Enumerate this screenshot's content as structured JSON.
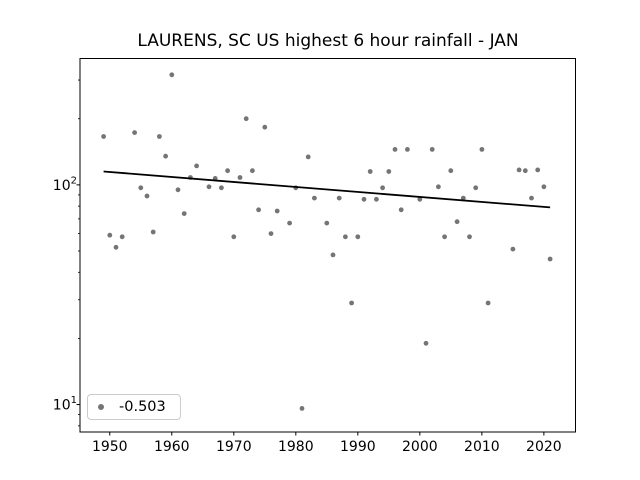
{
  "chart_data": {
    "type": "scatter",
    "title": "LAURENS, SC US highest 6 hour rainfall - JAN",
    "xlabel": "",
    "ylabel": "",
    "x_scale": "linear",
    "y_scale": "log",
    "xlim": [
      1945.2,
      2025.1
    ],
    "ylim": [
      7.5,
      376
    ],
    "x_ticks": [
      1950,
      1960,
      1970,
      1980,
      1990,
      2000,
      2010,
      2020
    ],
    "y_ticks": [
      {
        "value": 10,
        "mantissa": "10",
        "exponent": "1"
      },
      {
        "value": 100,
        "mantissa": "10",
        "exponent": "2"
      }
    ],
    "y_minor_ticks": [
      8,
      9,
      20,
      30,
      40,
      50,
      60,
      70,
      80,
      90,
      200,
      300
    ],
    "grid": false,
    "points": [
      [
        1949,
        166
      ],
      [
        1950,
        59
      ],
      [
        1951,
        52
      ],
      [
        1952,
        58
      ],
      [
        1954,
        173
      ],
      [
        1955,
        97
      ],
      [
        1956,
        89
      ],
      [
        1957,
        61
      ],
      [
        1958,
        166
      ],
      [
        1959,
        135
      ],
      [
        1960,
        317
      ],
      [
        1961,
        95
      ],
      [
        1962,
        74
      ],
      [
        1963,
        108
      ],
      [
        1964,
        122
      ],
      [
        1966,
        98
      ],
      [
        1967,
        107
      ],
      [
        1968,
        97
      ],
      [
        1969,
        116
      ],
      [
        1970,
        58
      ],
      [
        1971,
        108
      ],
      [
        1972,
        200
      ],
      [
        1973,
        116
      ],
      [
        1974,
        77
      ],
      [
        1975,
        183
      ],
      [
        1976,
        60
      ],
      [
        1977,
        76
      ],
      [
        1979,
        67
      ],
      [
        1980,
        97
      ],
      [
        1981,
        9.6
      ],
      [
        1982,
        134
      ],
      [
        1983,
        87
      ],
      [
        1985,
        67
      ],
      [
        1986,
        48
      ],
      [
        1987,
        87
      ],
      [
        1988,
        58
      ],
      [
        1989,
        29
      ],
      [
        1990,
        58
      ],
      [
        1991,
        86
      ],
      [
        1992,
        115
      ],
      [
        1993,
        86
      ],
      [
        1994,
        97
      ],
      [
        1995,
        115
      ],
      [
        1996,
        145
      ],
      [
        1997,
        77
      ],
      [
        1998,
        145
      ],
      [
        2000,
        86
      ],
      [
        2001,
        19
      ],
      [
        2002,
        145
      ],
      [
        2003,
        98
      ],
      [
        2004,
        58
      ],
      [
        2005,
        116
      ],
      [
        2006,
        68
      ],
      [
        2007,
        87
      ],
      [
        2008,
        58
      ],
      [
        2009,
        97
      ],
      [
        2010,
        145
      ],
      [
        2011,
        29
      ],
      [
        2015,
        51
      ],
      [
        2016,
        117
      ],
      [
        2017,
        116
      ],
      [
        2018,
        87
      ],
      [
        2019,
        117
      ],
      [
        2020,
        98
      ],
      [
        2021,
        46
      ]
    ],
    "trendline": {
      "x": [
        1949,
        2021
      ],
      "y": [
        115,
        79
      ],
      "slope": -0.503
    },
    "legend": {
      "label": "-0.503",
      "position": "lower left"
    },
    "colors": {
      "marker": "#757575",
      "trendline": "#000000",
      "axes": "#000000",
      "text": "#000000",
      "legend_border": "#cccccc",
      "background": "#ffffff"
    }
  }
}
